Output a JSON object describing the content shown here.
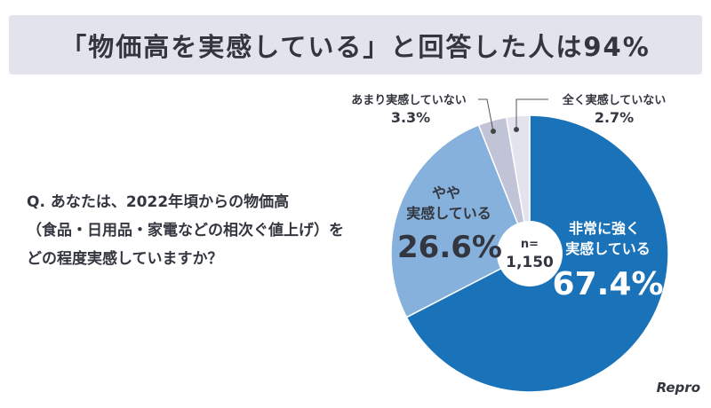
{
  "title": "「物価高を実感している」と回答した人は94%",
  "question": [
    "Q. あなたは、2022年頃からの物価高",
    "（食品・日用品・家電などの相次ぐ値上げ）を",
    "どの程度実感していますか？"
  ],
  "logo": "Repro",
  "chart_data": {
    "type": "pie",
    "center_label": [
      "n=",
      "1,150"
    ],
    "slices": [
      {
        "label": [
          "非常に強く",
          "実感している"
        ],
        "value": 67.4,
        "display": "67.4%",
        "color": "#1a72b9"
      },
      {
        "label": [
          "やや",
          "実感している"
        ],
        "value": 26.6,
        "display": "26.6%",
        "color": "#85b1dc"
      },
      {
        "label": [
          "あまり実感していない"
        ],
        "value": 3.3,
        "display": "3.3%",
        "color": "#c1c3d6"
      },
      {
        "label": [
          "全く実感していない"
        ],
        "value": 2.7,
        "display": "2.7%",
        "color": "#e3e3ee"
      }
    ]
  }
}
